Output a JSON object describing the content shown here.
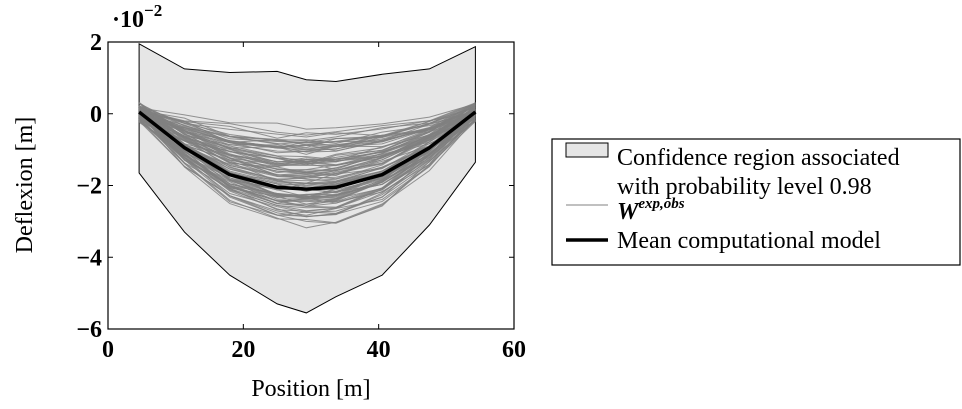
{
  "chart_data": {
    "type": "line",
    "xlabel": "Position [m]",
    "ylabel": "Deflexion [m]",
    "xlim": [
      0,
      60
    ],
    "ylim": [
      -6,
      2
    ],
    "y_multiplier_label": "·10",
    "y_multiplier_exponent": "−2",
    "x_ticks": [
      "0",
      "20",
      "40",
      "60"
    ],
    "y_ticks": [
      "2",
      "0",
      "−2",
      "−4",
      "−6"
    ],
    "x": [
      4.6,
      11.3,
      18.0,
      25.0,
      29.3,
      33.7,
      40.5,
      47.5,
      54.3
    ],
    "confidence_region": {
      "upper": [
        1.95,
        1.25,
        1.15,
        1.18,
        0.95,
        0.9,
        1.1,
        1.25,
        1.87
      ],
      "lower": [
        -1.65,
        -3.3,
        -4.5,
        -5.3,
        -5.55,
        -5.1,
        -4.5,
        -3.1,
        -1.35
      ]
    },
    "mean_series": [
      0.05,
      -0.95,
      -1.7,
      -2.05,
      -2.1,
      -2.05,
      -1.7,
      -0.95,
      0.05
    ],
    "observed_realisations_count": 100,
    "grid": false,
    "legend_position": "right-outside",
    "legend": {
      "region_line1": "Confidence region associated",
      "region_line2": "with probability level 0.98",
      "obs_symbol": "W",
      "obs_superscript": "exp,obs",
      "mean_label": "Mean computational model"
    },
    "colors": {
      "region_fill": "#e6e6e6",
      "observations": "#808080",
      "mean": "#000000"
    }
  }
}
